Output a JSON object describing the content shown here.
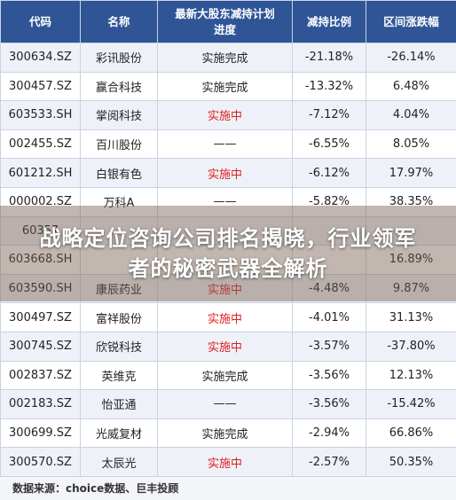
{
  "table": {
    "headers": [
      "代码",
      "名称",
      "最新大股东减持计划进度",
      "减持比例",
      "区间涨跌幅"
    ],
    "rows": [
      {
        "code": "300634.SZ",
        "name": "彩讯股份",
        "status": "实施完成",
        "active": false,
        "ratio": "-21.18%",
        "change": "-26.14%"
      },
      {
        "code": "300457.SZ",
        "name": "赢合科技",
        "status": "实施完成",
        "active": false,
        "ratio": "-13.32%",
        "change": "6.48%"
      },
      {
        "code": "603533.SH",
        "name": "掌阅科技",
        "status": "实施中",
        "active": true,
        "ratio": "-7.12%",
        "change": "4.04%"
      },
      {
        "code": "002455.SZ",
        "name": "百川股份",
        "status": "——",
        "active": false,
        "ratio": "-6.55%",
        "change": "8.05%"
      },
      {
        "code": "601212.SH",
        "name": "白银有色",
        "status": "实施中",
        "active": true,
        "ratio": "-6.12%",
        "change": "17.97%"
      },
      {
        "code": "000002.SZ",
        "name": "万科A",
        "status": "——",
        "active": false,
        "ratio": "-5.82%",
        "change": "38.35%"
      },
      {
        "code": "60357",
        "name": "",
        "status": "",
        "active": false,
        "ratio": "",
        "change": ""
      },
      {
        "code": "603668.SH",
        "name": "",
        "status": "",
        "active": false,
        "ratio": "",
        "change": "16.89%"
      },
      {
        "code": "603590.SH",
        "name": "康辰药业",
        "status": "实施中",
        "active": true,
        "ratio": "-4.48%",
        "change": "9.87%"
      },
      {
        "code": "300497.SZ",
        "name": "富祥股份",
        "status": "实施中",
        "active": true,
        "ratio": "-4.01%",
        "change": "31.13%"
      },
      {
        "code": "300745.SZ",
        "name": "欣锐科技",
        "status": "实施中",
        "active": true,
        "ratio": "-3.57%",
        "change": "-37.80%"
      },
      {
        "code": "002837.SZ",
        "name": "英维克",
        "status": "实施完成",
        "active": false,
        "ratio": "-3.56%",
        "change": "12.13%"
      },
      {
        "code": "002183.SZ",
        "name": "怡亚通",
        "status": "——",
        "active": false,
        "ratio": "-3.56%",
        "change": "-15.42%"
      },
      {
        "code": "300699.SZ",
        "name": "光威复材",
        "status": "实施完成",
        "active": false,
        "ratio": "-2.94%",
        "change": "66.86%"
      },
      {
        "code": "300570.SZ",
        "name": "太辰光",
        "status": "实施中",
        "active": true,
        "ratio": "-2.57%",
        "change": "50.35%"
      }
    ]
  },
  "source": "数据来源：choice数据、巨丰投顾",
  "overlay_title": "战略定位咨询公司排名揭晓，行业领军者的秘密武器全解析",
  "colors": {
    "header_bg": "#2f5597",
    "active_status": "#e02020",
    "row_alt": "#eef2f8"
  }
}
